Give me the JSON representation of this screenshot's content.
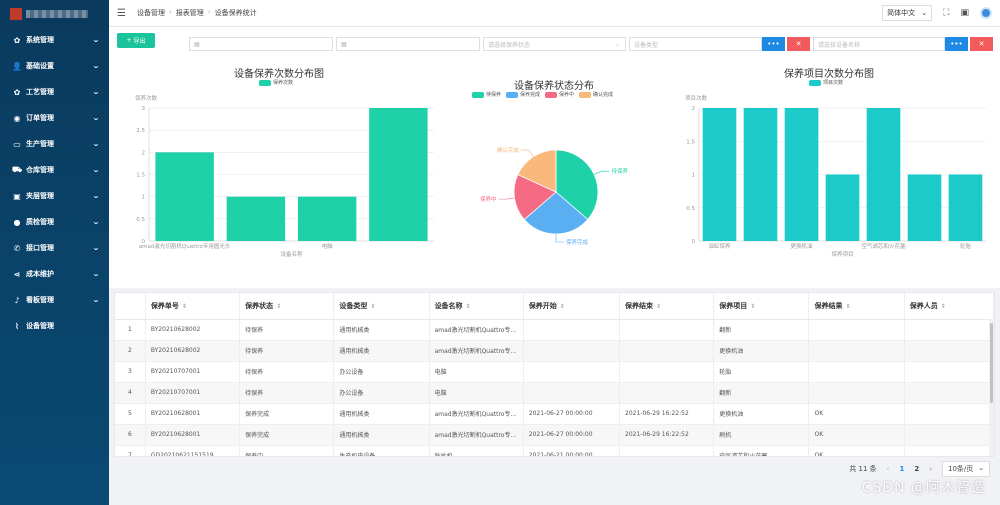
{
  "header": {
    "breadcrumb": [
      "设备管理",
      "报表管理",
      "设备保养统计"
    ],
    "language": "简体中文"
  },
  "sidebar": {
    "items": [
      {
        "label": "系统管理",
        "icon": "gear-icon",
        "glyph": "✿"
      },
      {
        "label": "基础设置",
        "icon": "user-icon",
        "glyph": "👤"
      },
      {
        "label": "工艺管理",
        "icon": "gear-icon",
        "glyph": "✿"
      },
      {
        "label": "订单管理",
        "icon": "eye-icon",
        "glyph": "◉"
      },
      {
        "label": "生产管理",
        "icon": "monitor-icon",
        "glyph": "▭"
      },
      {
        "label": "仓库管理",
        "icon": "truck-icon",
        "glyph": "⛟"
      },
      {
        "label": "夹层管理",
        "icon": "box-icon",
        "glyph": "▣"
      },
      {
        "label": "质检管理",
        "icon": "bulb-icon",
        "glyph": "●"
      },
      {
        "label": "接口管理",
        "icon": "phone-icon",
        "glyph": "✆"
      },
      {
        "label": "成本维护",
        "icon": "share-icon",
        "glyph": "⋖"
      },
      {
        "label": "看板管理",
        "icon": "bell-icon",
        "glyph": "♪"
      },
      {
        "label": "设备管理",
        "icon": "chart-line-icon",
        "glyph": "⌇"
      }
    ]
  },
  "toolbar": {
    "export_label": "导出",
    "status_placeholder": "请选择保养状态",
    "type_placeholder": "设备类型",
    "name_placeholder": "请选择设备名称",
    "more_glyph": "•••",
    "clear_glyph": "✕"
  },
  "charts": {
    "bar1_title": "设备保养次数分布图",
    "pie_title": "设备保养状态分布",
    "bar2_title": "保养项目次数分布图"
  },
  "chart_data": [
    {
      "type": "bar",
      "title": "设备保养次数分布图",
      "legend": [
        "保养次数"
      ],
      "ylabel": "保养次数",
      "xlabel": "设备名称",
      "ylim": [
        0,
        3
      ],
      "yticks": [
        "0",
        "0.5",
        "1",
        "1.5",
        "2",
        "2.5",
        "3"
      ],
      "categories": [
        "amad激光切割机Quattro专用圆光头",
        "",
        "电脑",
        ""
      ],
      "values": [
        2,
        1,
        1,
        3
      ],
      "color": "#1fd1a9"
    },
    {
      "type": "pie",
      "title": "设备保养状态分布",
      "legend": [
        "待保养",
        "保养完成",
        "保养中",
        "确认完成"
      ],
      "labels": [
        "待保养",
        "保养完成",
        "保养中",
        "确认完成"
      ],
      "values": [
        4,
        3,
        2,
        2
      ],
      "colors": [
        "#1fd1a9",
        "#5aaef2",
        "#f46b83",
        "#f9b87c"
      ]
    },
    {
      "type": "bar",
      "title": "保养项目次数分布图",
      "legend": [
        "项目次数"
      ],
      "ylabel": "项目次数",
      "xlabel": "保养项目",
      "ylim": [
        0,
        2
      ],
      "yticks": [
        "0",
        "0.5",
        "1",
        "1.5",
        "2"
      ],
      "categories": [
        "油缸保养",
        "",
        "更换机油",
        "",
        "空气滤芯和火花塞",
        "",
        "轮胎"
      ],
      "values": [
        2,
        2,
        2,
        1,
        2,
        1,
        1
      ],
      "color": "#1ccbc9"
    }
  ],
  "table": {
    "headers": [
      "保养单号",
      "保养状态",
      "设备类型",
      "设备名称",
      "保养开始",
      "保养结束",
      "保养项目",
      "保养结果",
      "保养人员"
    ],
    "rows": [
      [
        "1",
        "BY20210628002",
        "待保养",
        "通用机械类",
        "amad激光切割机Quattro专...",
        "",
        "",
        "翻新",
        "",
        ""
      ],
      [
        "2",
        "BY20210628002",
        "待保养",
        "通用机械类",
        "amad激光切割机Quattro专...",
        "",
        "",
        "更换机油",
        "",
        ""
      ],
      [
        "3",
        "BY20210707001",
        "待保养",
        "办公设备",
        "电脑",
        "",
        "",
        "轮胎",
        "",
        ""
      ],
      [
        "4",
        "BY20210707001",
        "待保养",
        "办公设备",
        "电脑",
        "",
        "",
        "翻新",
        "",
        ""
      ],
      [
        "5",
        "BY20210628001",
        "保养完成",
        "通用机械类",
        "amad激光切割机Quattro专...",
        "2021-06-27 00:00:00",
        "2021-06-29 16:22:52",
        "更换机油",
        "OK",
        ""
      ],
      [
        "6",
        "BY20210628001",
        "保养完成",
        "通用机械类",
        "amad激光切割机Quattro专...",
        "2021-06-27 00:00:00",
        "2021-06-29 16:22:52",
        "刷机",
        "OK",
        ""
      ],
      [
        "7",
        "GD20210621151519",
        "保养中",
        "生产机电设备",
        "贴片机",
        "2021-06-21 00:00:00",
        "",
        "空气滤芯和火花塞",
        "OK",
        ""
      ]
    ]
  },
  "pager": {
    "total": "共 11 条",
    "prev": "‹",
    "page1": "1",
    "page2": "2",
    "next": "›",
    "size": "10条/页"
  },
  "watermark": "CSDN @阿木智造"
}
